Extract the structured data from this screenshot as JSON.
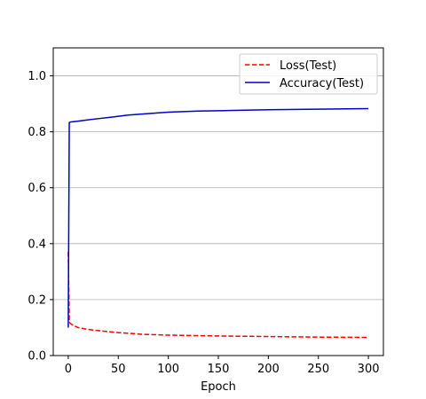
{
  "chart_data": {
    "type": "line",
    "title": "",
    "xlabel": "Epoch",
    "ylabel": "",
    "xlim": [
      -15,
      315
    ],
    "ylim": [
      0,
      1.1
    ],
    "x_ticks": [
      0,
      50,
      100,
      150,
      200,
      250,
      300
    ],
    "y_ticks": [
      0.0,
      0.2,
      0.4,
      0.6,
      0.8,
      1.0
    ],
    "x_tick_labels": [
      "0",
      "50",
      "100",
      "150",
      "200",
      "250",
      "300"
    ],
    "y_tick_labels": [
      "0.0",
      "0.2",
      "0.4",
      "0.6",
      "0.8",
      "1.0"
    ],
    "grid": "y",
    "legend_position": "top-right",
    "series": [
      {
        "name": "Loss(Test)",
        "color": "#ff0000",
        "style": "dashed",
        "points": [
          [
            0,
            0.37
          ],
          [
            1,
            0.12
          ],
          [
            2,
            0.115
          ],
          [
            5,
            0.108
          ],
          [
            10,
            0.1
          ],
          [
            20,
            0.093
          ],
          [
            30,
            0.089
          ],
          [
            50,
            0.082
          ],
          [
            75,
            0.076
          ],
          [
            100,
            0.073
          ],
          [
            150,
            0.07
          ],
          [
            200,
            0.068
          ],
          [
            250,
            0.066
          ],
          [
            300,
            0.065
          ]
        ]
      },
      {
        "name": "Accuracy(Test)",
        "color": "#0000cc",
        "style": "solid",
        "points": [
          [
            0,
            0.1
          ],
          [
            1,
            0.833
          ],
          [
            2,
            0.835
          ],
          [
            5,
            0.836
          ],
          [
            10,
            0.838
          ],
          [
            20,
            0.843
          ],
          [
            30,
            0.847
          ],
          [
            45,
            0.853
          ],
          [
            60,
            0.86
          ],
          [
            80,
            0.865
          ],
          [
            100,
            0.87
          ],
          [
            130,
            0.874
          ],
          [
            160,
            0.876
          ],
          [
            200,
            0.879
          ],
          [
            250,
            0.881
          ],
          [
            300,
            0.883
          ]
        ]
      }
    ]
  }
}
